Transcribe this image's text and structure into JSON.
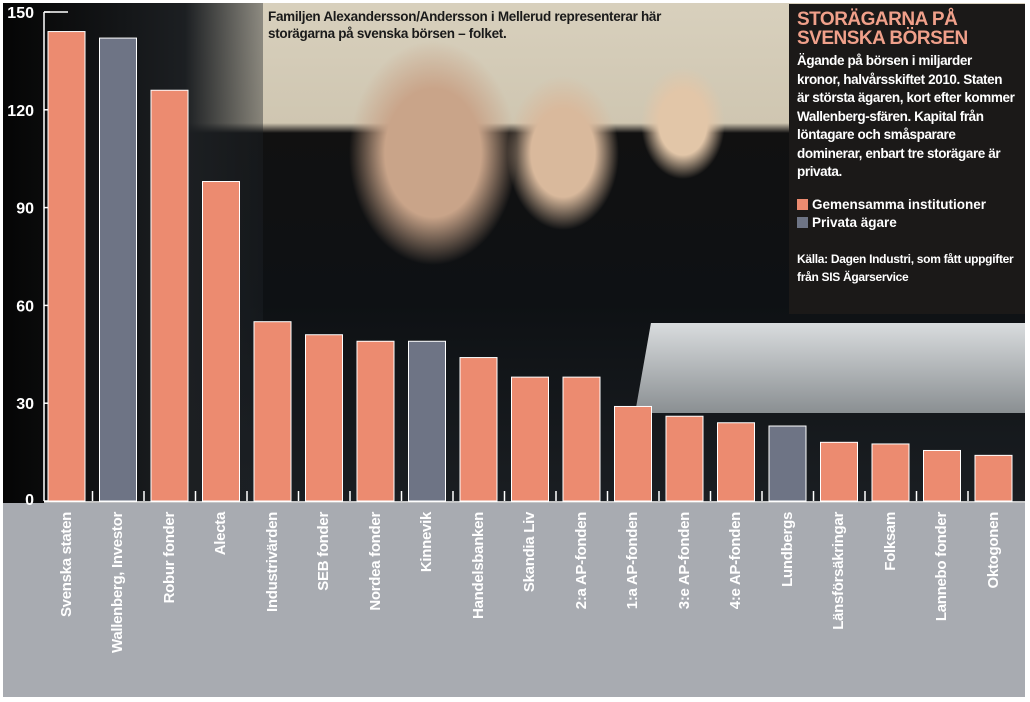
{
  "caption": "Familjen Alexandersson/Andersson i Mellerud representerar här storägarna på svenska börsen – folket.",
  "infobox": {
    "title": "STORÄGARNA PÅ SVENSKA BÖRSEN",
    "description": "Ägande på börsen i miljarder kronor, halvårsskiftet 2010. Staten är största ägaren, kort efter kommer Wallenberg-sfären. Kapital från löntagare och småsparare dominerar, enbart tre storägare är privata.",
    "source": "Källa: Dagen Industri, som fått uppgifter från SIS Ägarservice"
  },
  "chart_data": {
    "type": "bar",
    "title": "STORÄGARNA PÅ SVENSKA BÖRSEN",
    "ylabel": "Miljarder kronor",
    "ylim": [
      0,
      150
    ],
    "yticks": [
      0,
      30,
      60,
      90,
      120,
      150
    ],
    "legend_placement": "top-right",
    "legend": [
      {
        "name": "Gemensamma institutioner",
        "color": "#ec8b70"
      },
      {
        "name": "Privata ägare",
        "color": "#6e7485"
      }
    ],
    "categories": [
      "Svenska staten",
      "Wallenberg, Investor",
      "Robur fonder",
      "Alecta",
      "Industrivärden",
      "SEB fonder",
      "Nordea fonder",
      "Kinnevik",
      "Handelsbanken",
      "Skandia Liv",
      "2:a AP-fonden",
      "1:a AP-fonden",
      "3:e AP-fonden",
      "4:e AP-fonden",
      "Lundbergs",
      "Länsförsäkringar",
      "Folksam",
      "Lannebo fonder",
      "Oktogonen"
    ],
    "values": [
      144,
      142,
      126,
      98,
      55,
      51,
      49,
      49,
      44,
      38,
      38,
      29,
      26,
      24,
      23,
      18,
      17.5,
      15.5,
      14
    ],
    "groups": [
      0,
      1,
      0,
      0,
      0,
      0,
      0,
      1,
      0,
      0,
      0,
      0,
      0,
      0,
      1,
      0,
      0,
      0,
      0
    ]
  }
}
